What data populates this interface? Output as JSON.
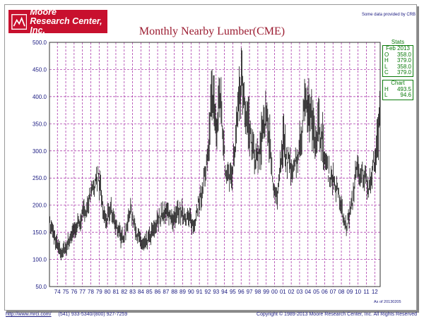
{
  "header": {
    "logo_line1": "Moore",
    "logo_line2": "Research Center, Inc.",
    "source_note": "Some data provided by CRB"
  },
  "footer": {
    "url": "http://www.mrci.com/",
    "phone": "(541) 933-5340/(800) 927-7259",
    "copyright": "Copyright © 1989-2013 Moore Research Center, Inc. All Rights Reserved"
  },
  "as_of": "As of 20130205",
  "stats": {
    "title": "Stats",
    "period": "Feb 2013",
    "rows": [
      {
        "k": "O",
        "v": "358.0"
      },
      {
        "k": "H",
        "v": "379.0"
      },
      {
        "k": "L",
        "v": "358.0"
      },
      {
        "k": "C",
        "v": "379.0"
      }
    ],
    "chart_title": "Chart",
    "chart_rows": [
      {
        "k": "H",
        "v": "493.5"
      },
      {
        "k": "L",
        "v": "94.6"
      }
    ]
  },
  "colors": {
    "brand_red": "#c8102e",
    "title_red": "#9b1b30",
    "axis_navy": "#1a1a80",
    "grid_purple": "#a020a0",
    "stats_green": "#0a7a0a"
  },
  "chart_data": {
    "type": "bar",
    "subtype": "monthly-high-low-bars",
    "title": "Monthly Nearby Lumber(CME)",
    "ylim": [
      50,
      500
    ],
    "yticks": [
      "50.0",
      "100.0",
      "150.0",
      "200.0",
      "250.0",
      "300.0",
      "350.0",
      "400.0",
      "450.0",
      "500.0"
    ],
    "xticks": [
      "74",
      "75",
      "76",
      "77",
      "78",
      "79",
      "80",
      "81",
      "82",
      "83",
      "84",
      "85",
      "86",
      "87",
      "88",
      "89",
      "90",
      "91",
      "92",
      "93",
      "94",
      "95",
      "96",
      "97",
      "98",
      "99",
      "00",
      "01",
      "02",
      "03",
      "04",
      "05",
      "06",
      "07",
      "08",
      "09",
      "10",
      "11",
      "12"
    ],
    "grid": true,
    "start_year": 1973.6,
    "end_year": 2013.1,
    "series": [
      {
        "values": [
          [
            1973.6,
            165
          ],
          [
            1974.0,
            150
          ],
          [
            1974.5,
            125
          ],
          [
            1974.9,
            112
          ],
          [
            1975.3,
            118
          ],
          [
            1975.8,
            132
          ],
          [
            1976.3,
            150
          ],
          [
            1976.8,
            160
          ],
          [
            1977.3,
            175
          ],
          [
            1977.8,
            190
          ],
          [
            1978.3,
            210
          ],
          [
            1978.8,
            225
          ],
          [
            1979.3,
            255
          ],
          [
            1979.6,
            235
          ],
          [
            1980.0,
            185
          ],
          [
            1980.4,
            170
          ],
          [
            1980.8,
            195
          ],
          [
            1981.2,
            180
          ],
          [
            1981.7,
            155
          ],
          [
            1982.2,
            140
          ],
          [
            1982.7,
            150
          ],
          [
            1983.2,
            190
          ],
          [
            1983.6,
            175
          ],
          [
            1984.0,
            150
          ],
          [
            1984.5,
            130
          ],
          [
            1984.9,
            125
          ],
          [
            1985.3,
            135
          ],
          [
            1985.8,
            150
          ],
          [
            1986.3,
            165
          ],
          [
            1986.8,
            180
          ],
          [
            1987.3,
            190
          ],
          [
            1987.8,
            185
          ],
          [
            1988.3,
            175
          ],
          [
            1988.8,
            185
          ],
          [
            1989.3,
            190
          ],
          [
            1989.8,
            180
          ],
          [
            1990.3,
            175
          ],
          [
            1990.8,
            160
          ],
          [
            1991.3,
            200
          ],
          [
            1991.8,
            225
          ],
          [
            1992.2,
            260
          ],
          [
            1992.6,
            290
          ],
          [
            1993.0,
            430
          ],
          [
            1993.2,
            390
          ],
          [
            1993.6,
            320
          ],
          [
            1993.9,
            420
          ],
          [
            1994.2,
            370
          ],
          [
            1994.6,
            270
          ],
          [
            1995.0,
            250
          ],
          [
            1995.4,
            260
          ],
          [
            1995.8,
            300
          ],
          [
            1996.2,
            390
          ],
          [
            1996.6,
            430
          ],
          [
            1997.0,
            370
          ],
          [
            1997.4,
            350
          ],
          [
            1997.8,
            310
          ],
          [
            1998.2,
            290
          ],
          [
            1998.7,
            300
          ],
          [
            1999.2,
            340
          ],
          [
            1999.6,
            370
          ],
          [
            2000.0,
            300
          ],
          [
            2000.4,
            240
          ],
          [
            2000.8,
            210
          ],
          [
            2001.2,
            270
          ],
          [
            2001.6,
            320
          ],
          [
            2002.0,
            280
          ],
          [
            2002.5,
            270
          ],
          [
            2002.9,
            280
          ],
          [
            2003.3,
            290
          ],
          [
            2003.8,
            330
          ],
          [
            2004.2,
            410
          ],
          [
            2004.6,
            380
          ],
          [
            2005.0,
            360
          ],
          [
            2005.4,
            320
          ],
          [
            2005.8,
            350
          ],
          [
            2006.2,
            320
          ],
          [
            2006.6,
            280
          ],
          [
            2007.0,
            260
          ],
          [
            2007.5,
            250
          ],
          [
            2007.9,
            230
          ],
          [
            2008.3,
            210
          ],
          [
            2008.8,
            170
          ],
          [
            2009.1,
            160
          ],
          [
            2009.5,
            185
          ],
          [
            2009.9,
            210
          ],
          [
            2010.3,
            280
          ],
          [
            2010.7,
            240
          ],
          [
            2011.0,
            260
          ],
          [
            2011.4,
            250
          ],
          [
            2011.8,
            235
          ],
          [
            2012.2,
            265
          ],
          [
            2012.6,
            290
          ],
          [
            2012.9,
            340
          ],
          [
            2013.1,
            379
          ]
        ]
      }
    ]
  }
}
